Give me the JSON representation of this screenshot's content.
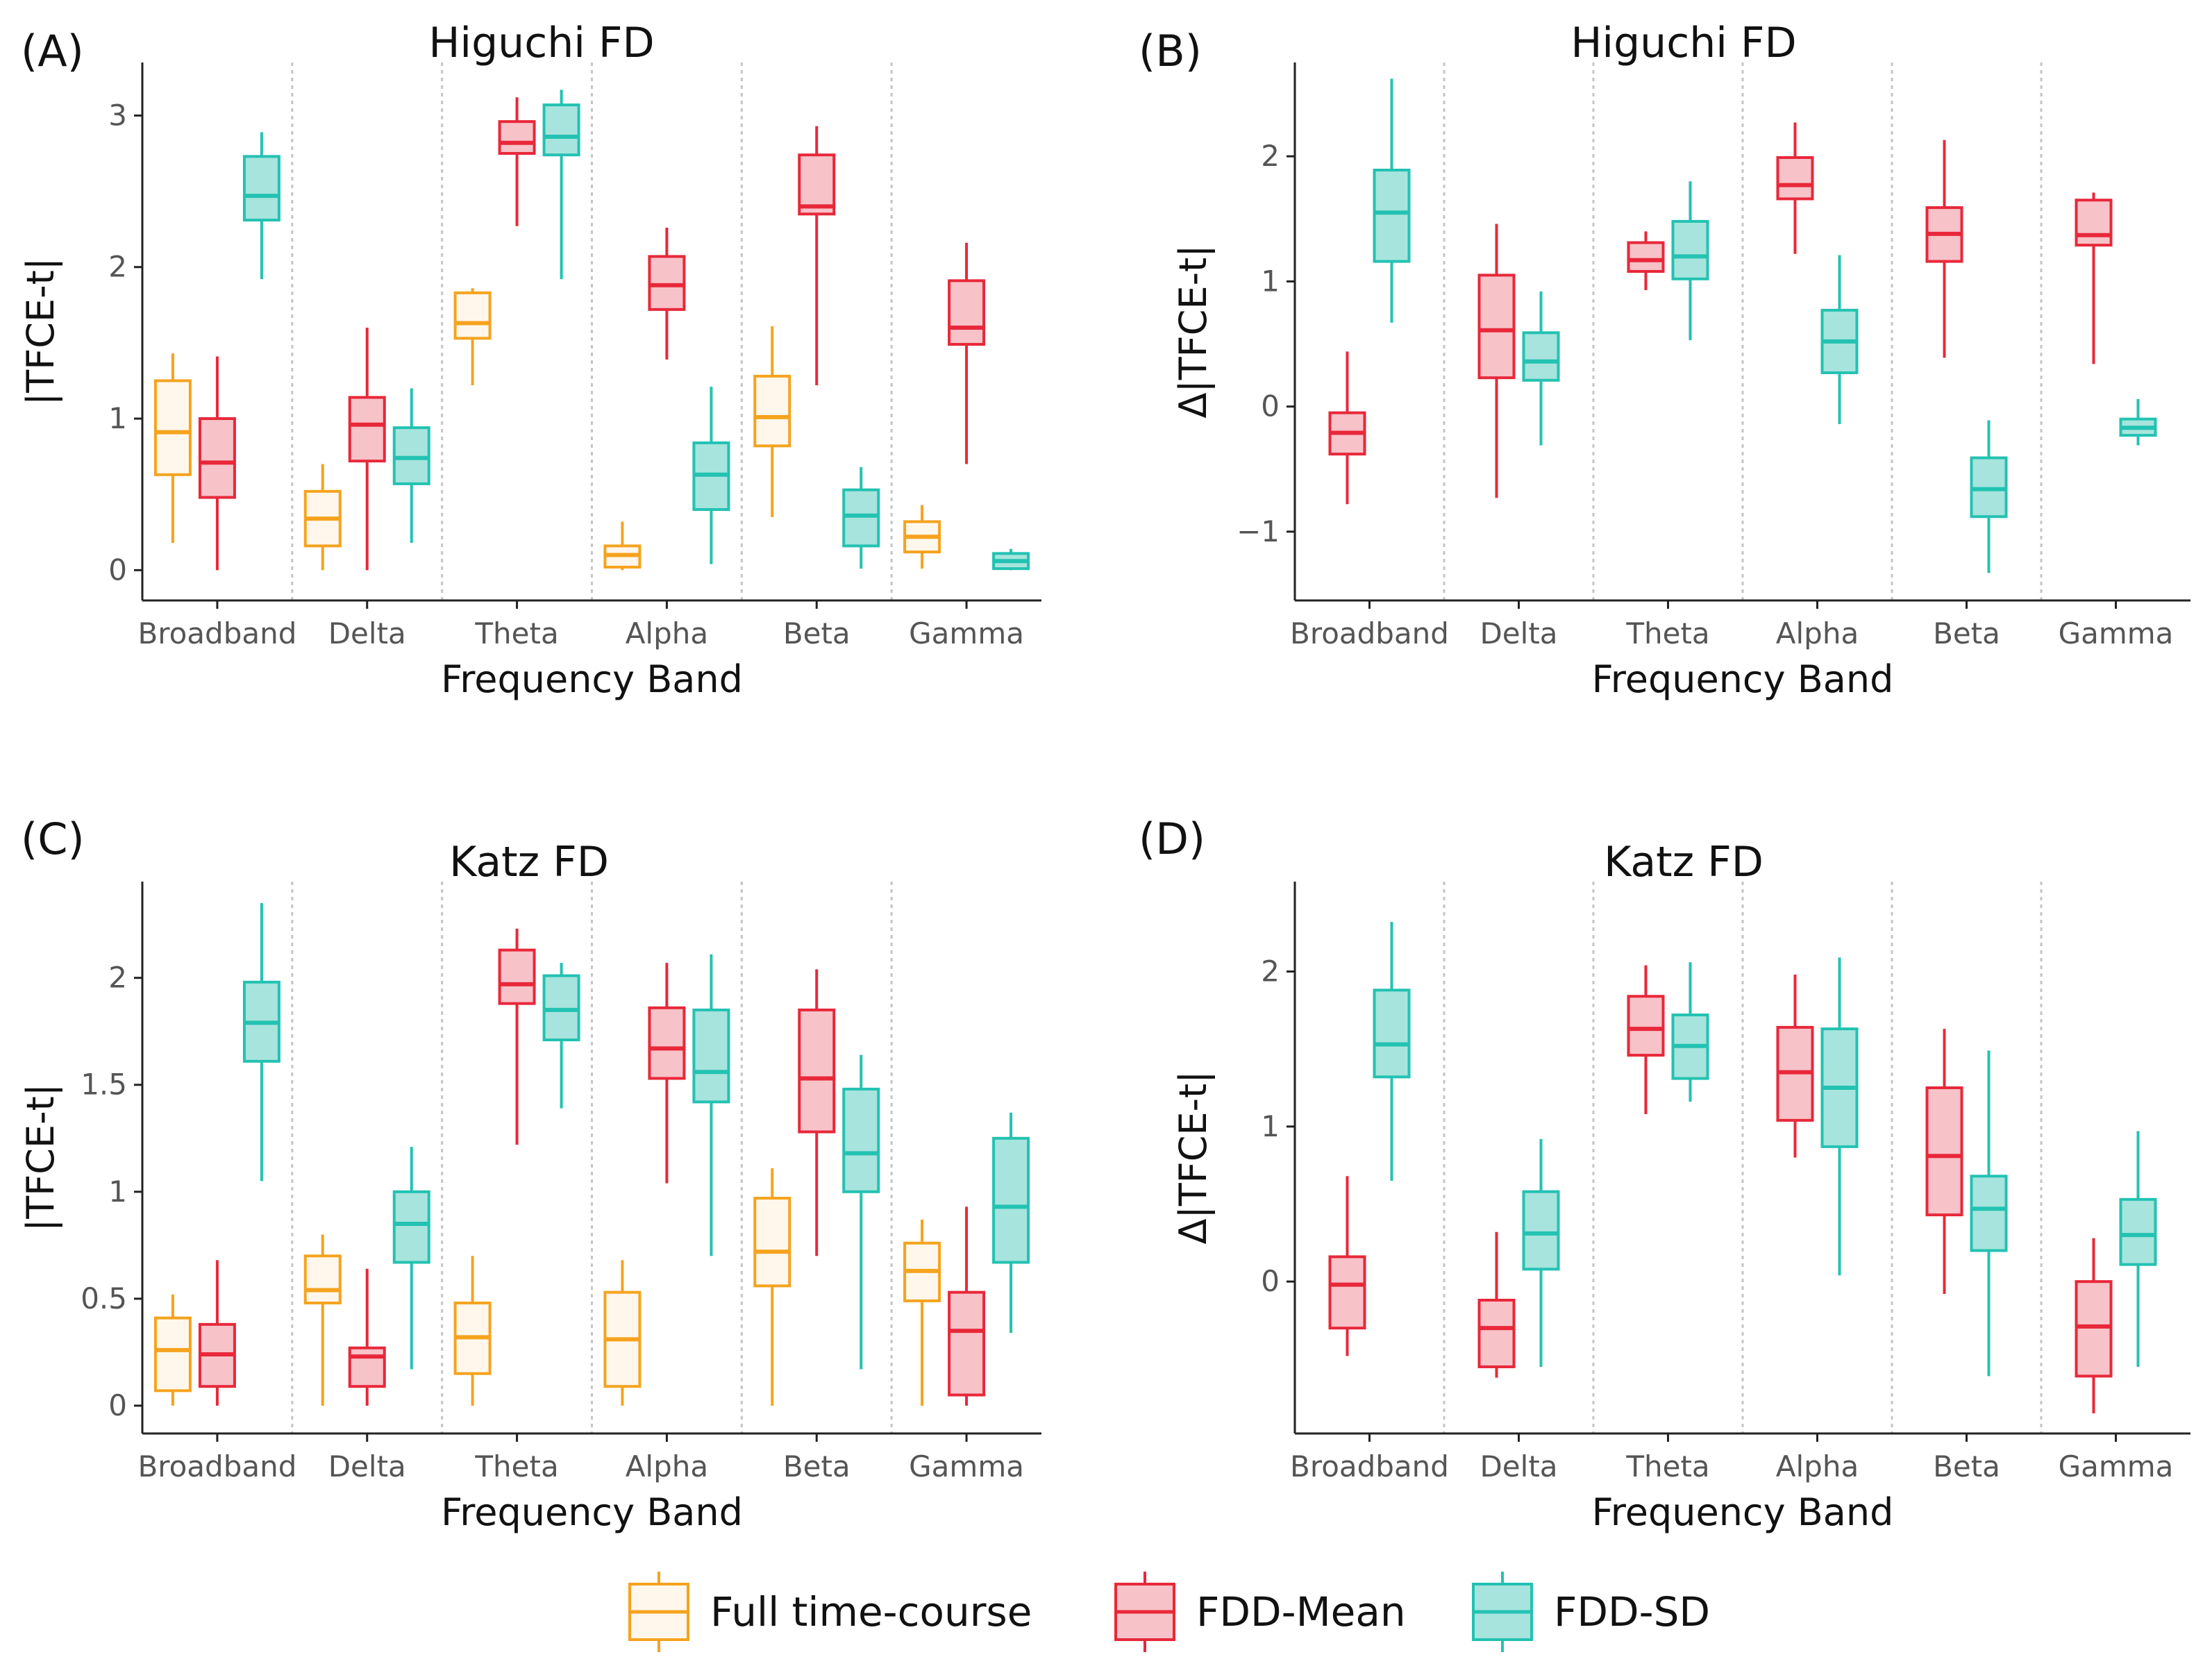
{
  "legend": [
    {
      "name": "Full time-course",
      "color": "#F5A31E",
      "fill": "#FFF7EC"
    },
    {
      "name": "FDD-Mean",
      "color": "#E8283A",
      "fill": "#F7C2C8"
    },
    {
      "name": "FDD-SD",
      "color": "#23C2B2",
      "fill": "#A7E4DD"
    }
  ],
  "chart_data": [
    {
      "type": "box",
      "label": "(A)",
      "title": "Higuchi FD",
      "xlabel": "Frequency Band",
      "ylabel": "|TFCE-t|",
      "ylim": [
        -0.2,
        3.35
      ],
      "yticks": [
        {
          "v": 0,
          "t": "0"
        },
        {
          "v": 1,
          "t": "1"
        },
        {
          "v": 2,
          "t": "2"
        },
        {
          "v": 3,
          "t": "3"
        }
      ],
      "categories": [
        "Broadband",
        "Delta",
        "Theta",
        "Alpha",
        "Beta",
        "Gamma"
      ],
      "series": [
        {
          "name": "Full time-course",
          "boxes": [
            [
              0.18,
              0.63,
              0.91,
              1.25,
              1.43
            ],
            [
              0.0,
              0.16,
              0.34,
              0.52,
              0.7
            ],
            [
              1.22,
              1.53,
              1.63,
              1.83,
              1.86
            ],
            [
              0.0,
              0.02,
              0.1,
              0.16,
              0.32
            ],
            [
              0.35,
              0.82,
              1.01,
              1.28,
              1.61
            ],
            [
              0.01,
              0.12,
              0.22,
              0.32,
              0.43
            ]
          ]
        },
        {
          "name": "FDD-Mean",
          "boxes": [
            [
              0.0,
              0.48,
              0.71,
              1.0,
              1.41
            ],
            [
              0.0,
              0.72,
              0.96,
              1.14,
              1.6
            ],
            [
              2.27,
              2.75,
              2.82,
              2.96,
              3.12
            ],
            [
              1.39,
              1.72,
              1.88,
              2.07,
              2.26
            ],
            [
              1.22,
              2.35,
              2.4,
              2.74,
              2.93
            ],
            [
              0.7,
              1.49,
              1.6,
              1.91,
              2.16
            ]
          ]
        },
        {
          "name": "FDD-SD",
          "boxes": [
            [
              1.92,
              2.31,
              2.47,
              2.73,
              2.89
            ],
            [
              0.18,
              0.57,
              0.74,
              0.94,
              1.2
            ],
            [
              1.92,
              2.74,
              2.86,
              3.07,
              3.17
            ],
            [
              0.04,
              0.4,
              0.63,
              0.84,
              1.21
            ],
            [
              0.01,
              0.16,
              0.36,
              0.53,
              0.68
            ],
            [
              0.0,
              0.01,
              0.06,
              0.11,
              0.14
            ]
          ]
        }
      ]
    },
    {
      "type": "box",
      "label": "(B)",
      "title": "Higuchi FD",
      "xlabel": "Frequency Band",
      "ylabel": "Δ|TFCE-t|",
      "ylim": [
        -1.55,
        2.75
      ],
      "yticks": [
        {
          "v": -1,
          "t": "−1"
        },
        {
          "v": 0,
          "t": "0"
        },
        {
          "v": 1,
          "t": "1"
        },
        {
          "v": 2,
          "t": "2"
        }
      ],
      "categories": [
        "Broadband",
        "Delta",
        "Theta",
        "Alpha",
        "Beta",
        "Gamma"
      ],
      "series": [
        {
          "name": "FDD-Mean",
          "boxes": [
            [
              -0.78,
              -0.38,
              -0.21,
              -0.05,
              0.44
            ],
            [
              -0.73,
              0.23,
              0.61,
              1.05,
              1.46
            ],
            [
              0.93,
              1.08,
              1.17,
              1.31,
              1.4
            ],
            [
              1.22,
              1.66,
              1.77,
              1.99,
              2.27
            ],
            [
              0.39,
              1.16,
              1.38,
              1.59,
              2.13
            ],
            [
              0.34,
              1.29,
              1.37,
              1.65,
              1.71
            ]
          ]
        },
        {
          "name": "FDD-SD",
          "boxes": [
            [
              0.67,
              1.16,
              1.55,
              1.89,
              2.62
            ],
            [
              -0.31,
              0.21,
              0.36,
              0.59,
              0.92
            ],
            [
              0.53,
              1.02,
              1.2,
              1.48,
              1.8
            ],
            [
              -0.14,
              0.27,
              0.52,
              0.77,
              1.21
            ],
            [
              -1.33,
              -0.88,
              -0.66,
              -0.41,
              -0.11
            ],
            [
              -0.31,
              -0.23,
              -0.17,
              -0.1,
              0.06
            ]
          ]
        }
      ]
    },
    {
      "type": "box",
      "label": "(C)",
      "title": "Katz FD",
      "xlabel": "Frequency Band",
      "ylabel": "|TFCE-t|",
      "ylim": [
        -0.13,
        2.45
      ],
      "yticks": [
        {
          "v": 0,
          "t": "0"
        },
        {
          "v": 0.5,
          "t": "0.5"
        },
        {
          "v": 1,
          "t": "1"
        },
        {
          "v": 1.5,
          "t": "1.5"
        },
        {
          "v": 2,
          "t": "2"
        }
      ],
      "categories": [
        "Broadband",
        "Delta",
        "Theta",
        "Alpha",
        "Beta",
        "Gamma"
      ],
      "series": [
        {
          "name": "Full time-course",
          "boxes": [
            [
              0.0,
              0.07,
              0.26,
              0.41,
              0.52
            ],
            [
              0.0,
              0.48,
              0.54,
              0.7,
              0.8
            ],
            [
              0.0,
              0.15,
              0.32,
              0.48,
              0.7
            ],
            [
              0.0,
              0.09,
              0.31,
              0.53,
              0.68
            ],
            [
              0.0,
              0.56,
              0.72,
              0.97,
              1.11
            ],
            [
              0.0,
              0.49,
              0.63,
              0.76,
              0.87
            ]
          ]
        },
        {
          "name": "FDD-Mean",
          "boxes": [
            [
              0.0,
              0.09,
              0.24,
              0.38,
              0.68
            ],
            [
              0.0,
              0.09,
              0.23,
              0.27,
              0.64
            ],
            [
              1.22,
              1.88,
              1.97,
              2.13,
              2.23
            ],
            [
              1.04,
              1.53,
              1.67,
              1.86,
              2.07
            ],
            [
              0.7,
              1.28,
              1.53,
              1.85,
              2.04
            ],
            [
              0.0,
              0.05,
              0.35,
              0.53,
              0.93
            ]
          ]
        },
        {
          "name": "FDD-SD",
          "boxes": [
            [
              1.05,
              1.61,
              1.79,
              1.98,
              2.35
            ],
            [
              0.17,
              0.67,
              0.85,
              1.0,
              1.21
            ],
            [
              1.39,
              1.71,
              1.85,
              2.01,
              2.07
            ],
            [
              0.7,
              1.42,
              1.56,
              1.85,
              2.11
            ],
            [
              0.17,
              1.0,
              1.18,
              1.48,
              1.64
            ],
            [
              0.34,
              0.67,
              0.93,
              1.25,
              1.37
            ]
          ]
        }
      ]
    },
    {
      "type": "box",
      "label": "(D)",
      "title": "Katz FD",
      "xlabel": "Frequency Band",
      "ylabel": "Δ|TFCE-t|",
      "ylim": [
        -0.98,
        2.58
      ],
      "yticks": [
        {
          "v": 0,
          "t": "0"
        },
        {
          "v": 1,
          "t": "1"
        },
        {
          "v": 2,
          "t": "2"
        }
      ],
      "categories": [
        "Broadband",
        "Delta",
        "Theta",
        "Alpha",
        "Beta",
        "Gamma"
      ],
      "series": [
        {
          "name": "FDD-Mean",
          "boxes": [
            [
              -0.48,
              -0.3,
              -0.02,
              0.16,
              0.68
            ],
            [
              -0.62,
              -0.55,
              -0.3,
              -0.12,
              0.32
            ],
            [
              1.08,
              1.46,
              1.63,
              1.84,
              2.04
            ],
            [
              0.8,
              1.04,
              1.35,
              1.64,
              1.98
            ],
            [
              -0.08,
              0.43,
              0.81,
              1.25,
              1.63
            ],
            [
              -0.85,
              -0.61,
              -0.29,
              0.0,
              0.28
            ]
          ]
        },
        {
          "name": "FDD-SD",
          "boxes": [
            [
              0.65,
              1.32,
              1.53,
              1.88,
              2.32
            ],
            [
              -0.55,
              0.08,
              0.31,
              0.58,
              0.92
            ],
            [
              1.16,
              1.31,
              1.52,
              1.72,
              2.06
            ],
            [
              0.04,
              0.87,
              1.25,
              1.63,
              2.09
            ],
            [
              -0.61,
              0.2,
              0.47,
              0.68,
              1.49
            ],
            [
              -0.55,
              0.11,
              0.3,
              0.53,
              0.97
            ]
          ]
        }
      ]
    }
  ]
}
